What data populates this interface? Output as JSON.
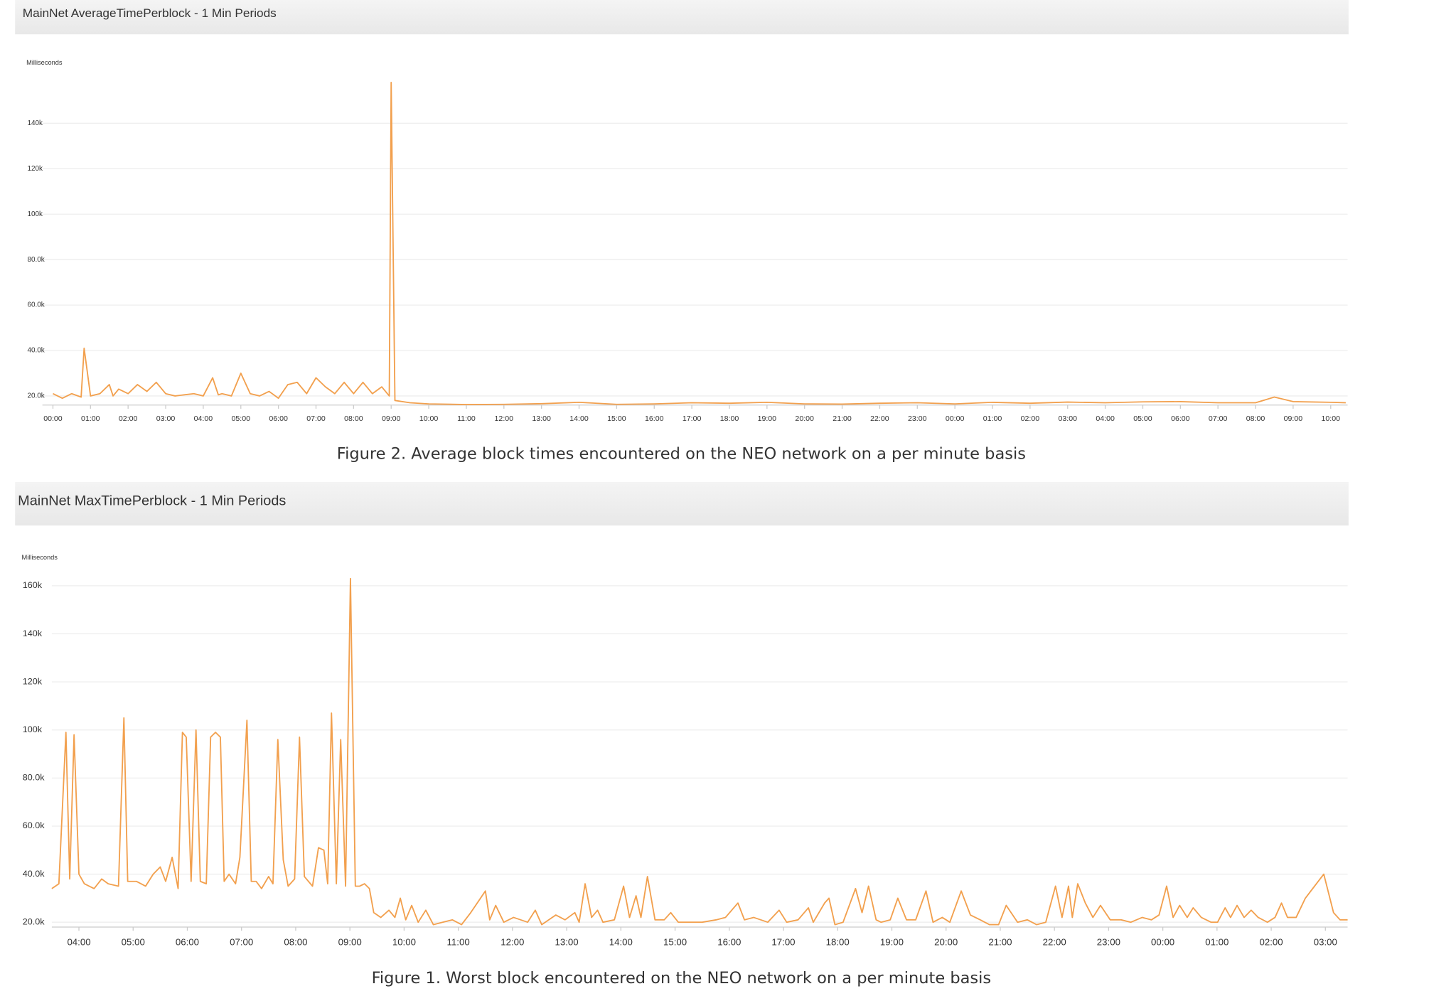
{
  "chart_data": [
    {
      "type": "line",
      "title": "MainNet AverageTimePerblock - 1 Min Periods",
      "y_label": "Milliseconds",
      "caption": "Figure 2. Average block times encountered on the NEO network on a per minute basis",
      "color": "#f2a04e",
      "grid": true,
      "xlim": [
        -0.28,
        34.45
      ],
      "xticks": [
        {
          "value": 0,
          "label": "00:00"
        },
        {
          "value": 1,
          "label": "01:00"
        },
        {
          "value": 2,
          "label": "02:00"
        },
        {
          "value": 3,
          "label": "03:00"
        },
        {
          "value": 4,
          "label": "04:00"
        },
        {
          "value": 5,
          "label": "05:00"
        },
        {
          "value": 6,
          "label": "06:00"
        },
        {
          "value": 7,
          "label": "07:00"
        },
        {
          "value": 8,
          "label": "08:00"
        },
        {
          "value": 9,
          "label": "09:00"
        },
        {
          "value": 10,
          "label": "10:00"
        },
        {
          "value": 11,
          "label": "11:00"
        },
        {
          "value": 12,
          "label": "12:00"
        },
        {
          "value": 13,
          "label": "13:00"
        },
        {
          "value": 14,
          "label": "14:00"
        },
        {
          "value": 15,
          "label": "15:00"
        },
        {
          "value": 16,
          "label": "16:00"
        },
        {
          "value": 17,
          "label": "17:00"
        },
        {
          "value": 18,
          "label": "18:00"
        },
        {
          "value": 19,
          "label": "19:00"
        },
        {
          "value": 20,
          "label": "20:00"
        },
        {
          "value": 21,
          "label": "21:00"
        },
        {
          "value": 22,
          "label": "22:00"
        },
        {
          "value": 23,
          "label": "23:00"
        },
        {
          "value": 24,
          "label": "00:00"
        },
        {
          "value": 25,
          "label": "01:00"
        },
        {
          "value": 26,
          "label": "02:00"
        },
        {
          "value": 27,
          "label": "03:00"
        },
        {
          "value": 28,
          "label": "04:00"
        },
        {
          "value": 29,
          "label": "05:00"
        },
        {
          "value": 30,
          "label": "06:00"
        },
        {
          "value": 31,
          "label": "07:00"
        },
        {
          "value": 32,
          "label": "08:00"
        },
        {
          "value": 33,
          "label": "09:00"
        },
        {
          "value": 34,
          "label": "10:00"
        }
      ],
      "ylim": [
        16000,
        170000
      ],
      "yticks": [
        {
          "value": 20000,
          "label": "20.0k"
        },
        {
          "value": 40000,
          "label": "40.0k"
        },
        {
          "value": 60000,
          "label": "60.0k"
        },
        {
          "value": 80000,
          "label": "80.0k"
        },
        {
          "value": 100000,
          "label": "100k"
        },
        {
          "value": 120000,
          "label": "120k"
        },
        {
          "value": 140000,
          "label": "140k"
        }
      ],
      "x": [
        0,
        0.25,
        0.5,
        0.75,
        0.83,
        1,
        1.25,
        1.5,
        1.6,
        1.75,
        2,
        2.25,
        2.5,
        2.75,
        3,
        3.25,
        3.5,
        3.75,
        4,
        4.25,
        4.4,
        4.5,
        4.75,
        5,
        5.25,
        5.5,
        5.75,
        6,
        6.25,
        6.5,
        6.75,
        7,
        7.25,
        7.5,
        7.75,
        8,
        8.25,
        8.5,
        8.75,
        8.95,
        9,
        9.1,
        9.5,
        10,
        11,
        12,
        13,
        14,
        15,
        16,
        17,
        18,
        19,
        20,
        21,
        22,
        23,
        24,
        25,
        26,
        27,
        28,
        29,
        30,
        31,
        32,
        32.5,
        33,
        34,
        34.4
      ],
      "values": [
        21000,
        19000,
        21000,
        19500,
        41000,
        20000,
        21000,
        25000,
        20000,
        23000,
        21000,
        25000,
        22000,
        26000,
        21000,
        20000,
        20500,
        21000,
        20000,
        28000,
        20500,
        21000,
        20000,
        30000,
        21000,
        20000,
        22000,
        19000,
        25000,
        26000,
        21000,
        28000,
        24000,
        21000,
        26000,
        21000,
        26000,
        21000,
        24000,
        20000,
        158000,
        18000,
        17000,
        16500,
        16200,
        16300,
        16600,
        17200,
        16300,
        16500,
        17000,
        16800,
        17200,
        16500,
        16400,
        16800,
        17000,
        16500,
        17200,
        16800,
        17300,
        17000,
        17400,
        17500,
        17000,
        17000,
        19500,
        17500,
        17200,
        17000
      ]
    },
    {
      "type": "line",
      "title": "MainNet MaxTimePerblock - 1 Min Periods",
      "y_label": "Milliseconds",
      "caption": "Figure 1. Worst block encountered on the NEO network on a per minute basis",
      "color": "#f2a04e",
      "grid": true,
      "xlim": [
        -0.5,
        23.41
      ],
      "xticks": [
        {
          "value": 0,
          "label": "04:00"
        },
        {
          "value": 1,
          "label": "05:00"
        },
        {
          "value": 2,
          "label": "06:00"
        },
        {
          "value": 3,
          "label": "07:00"
        },
        {
          "value": 4,
          "label": "08:00"
        },
        {
          "value": 5,
          "label": "09:00"
        },
        {
          "value": 6,
          "label": "10:00"
        },
        {
          "value": 7,
          "label": "11:00"
        },
        {
          "value": 8,
          "label": "12:00"
        },
        {
          "value": 9,
          "label": "13:00"
        },
        {
          "value": 10,
          "label": "14:00"
        },
        {
          "value": 11,
          "label": "15:00"
        },
        {
          "value": 12,
          "label": "16:00"
        },
        {
          "value": 13,
          "label": "17:00"
        },
        {
          "value": 14,
          "label": "18:00"
        },
        {
          "value": 15,
          "label": "19:00"
        },
        {
          "value": 16,
          "label": "20:00"
        },
        {
          "value": 17,
          "label": "21:00"
        },
        {
          "value": 18,
          "label": "22:00"
        },
        {
          "value": 19,
          "label": "23:00"
        },
        {
          "value": 20,
          "label": "00:00"
        },
        {
          "value": 21,
          "label": "01:00"
        },
        {
          "value": 22,
          "label": "02:00"
        },
        {
          "value": 23,
          "label": "03:00"
        }
      ],
      "ylim": [
        18000,
        167000
      ],
      "yticks": [
        {
          "value": 20000,
          "label": "20.0k"
        },
        {
          "value": 40000,
          "label": "40.0k"
        },
        {
          "value": 60000,
          "label": "60.0k"
        },
        {
          "value": 80000,
          "label": "80.0k"
        },
        {
          "value": 100000,
          "label": "100k"
        },
        {
          "value": 120000,
          "label": "120k"
        },
        {
          "value": 140000,
          "label": "140k"
        },
        {
          "value": 160000,
          "label": "160k"
        }
      ],
      "x": [
        -0.5,
        -0.37,
        -0.24,
        -0.17,
        -0.09,
        0,
        0.1,
        0.28,
        0.42,
        0.54,
        0.73,
        0.83,
        0.9,
        1.06,
        1.23,
        1.37,
        1.5,
        1.6,
        1.72,
        1.83,
        1.91,
        1.98,
        2.07,
        2.16,
        2.24,
        2.35,
        2.43,
        2.52,
        2.61,
        2.68,
        2.77,
        2.89,
        2.97,
        3.1,
        3.18,
        3.27,
        3.37,
        3.5,
        3.58,
        3.67,
        3.77,
        3.86,
        3.98,
        4.07,
        4.16,
        4.31,
        4.42,
        4.52,
        4.59,
        4.66,
        4.75,
        4.83,
        4.92,
        5.01,
        5.1,
        5.18,
        5.27,
        5.36,
        5.44,
        5.57,
        5.72,
        5.83,
        5.93,
        6.03,
        6.14,
        6.26,
        6.4,
        6.54,
        6.71,
        6.89,
        7.06,
        7.23,
        7.5,
        7.58,
        7.69,
        7.84,
        8.02,
        8.28,
        8.42,
        8.54,
        8.8,
        8.97,
        9.15,
        9.23,
        9.34,
        9.46,
        9.57,
        9.67,
        9.88,
        10.05,
        10.16,
        10.28,
        10.37,
        10.49,
        10.63,
        10.8,
        10.92,
        11.06,
        11.32,
        11.5,
        11.76,
        11.93,
        12.16,
        12.28,
        12.45,
        12.71,
        12.92,
        13.06,
        13.27,
        13.46,
        13.55,
        13.76,
        13.84,
        13.95,
        14.1,
        14.33,
        14.45,
        14.57,
        14.71,
        14.8,
        14.97,
        15.11,
        15.27,
        15.44,
        15.63,
        15.76,
        15.93,
        16.07,
        16.28,
        16.45,
        16.63,
        16.8,
        16.97,
        17.11,
        17.32,
        17.5,
        17.67,
        17.84,
        18.02,
        18.14,
        18.26,
        18.33,
        18.43,
        18.57,
        18.71,
        18.85,
        19.03,
        19.23,
        19.41,
        19.62,
        19.79,
        19.93,
        20.07,
        20.19,
        20.31,
        20.45,
        20.56,
        20.71,
        20.89,
        21.01,
        21.15,
        21.25,
        21.37,
        21.5,
        21.63,
        21.76,
        21.93,
        22.07,
        22.19,
        22.3,
        22.46,
        22.63,
        22.8,
        22.97,
        23.15,
        23.27,
        23.41
      ],
      "values": [
        34000,
        36000,
        99000,
        38000,
        98000,
        40000,
        36000,
        34000,
        38000,
        36000,
        35000,
        105000,
        37000,
        37000,
        35000,
        40000,
        43000,
        37000,
        47000,
        34000,
        99000,
        97000,
        37000,
        100000,
        37000,
        36000,
        97000,
        99000,
        97000,
        37000,
        40000,
        36000,
        47000,
        104000,
        37000,
        37000,
        34000,
        39000,
        36000,
        96000,
        46000,
        35000,
        38000,
        97000,
        39000,
        35000,
        51000,
        50000,
        36000,
        107000,
        36000,
        96000,
        35000,
        163000,
        35000,
        35000,
        36000,
        34000,
        24000,
        22000,
        25000,
        22000,
        30000,
        21000,
        27000,
        20000,
        25000,
        19000,
        20000,
        21000,
        19000,
        24000,
        33000,
        21000,
        27000,
        20000,
        22000,
        20000,
        25000,
        19000,
        23000,
        21000,
        24000,
        20000,
        36000,
        22000,
        25000,
        20000,
        21000,
        35000,
        22000,
        31000,
        22000,
        39000,
        21000,
        21000,
        24000,
        20000,
        20000,
        20000,
        21000,
        22000,
        28000,
        21000,
        22000,
        20000,
        25000,
        20000,
        21000,
        26000,
        20000,
        28000,
        30000,
        19000,
        20000,
        34000,
        24000,
        35000,
        21000,
        20000,
        21000,
        30000,
        21000,
        21000,
        33000,
        20000,
        22000,
        20000,
        33000,
        23000,
        21000,
        19000,
        19000,
        27000,
        20000,
        21000,
        19000,
        20000,
        35000,
        22000,
        35000,
        22000,
        36000,
        28000,
        22000,
        27000,
        21000,
        21000,
        20000,
        22000,
        21000,
        23000,
        35000,
        22000,
        27000,
        22000,
        26000,
        22000,
        20000,
        20000,
        26000,
        22000,
        27000,
        22000,
        25000,
        22000,
        20000,
        22000,
        28000,
        22000,
        22000,
        30000,
        35000,
        40000,
        24000,
        21000,
        21000
      ]
    }
  ]
}
